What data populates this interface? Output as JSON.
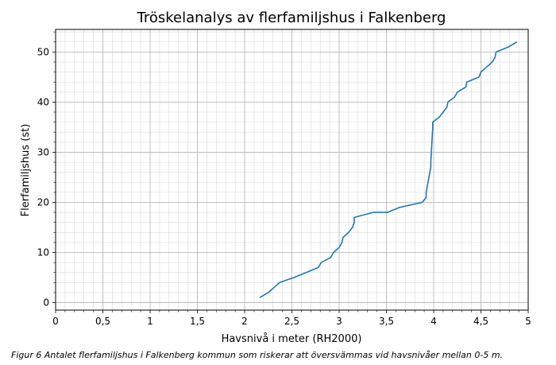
{
  "chart_data": {
    "type": "line",
    "title": "Tröskelanalys av flerfamiljshus i Falkenberg",
    "xlabel": "Havsnivå i meter (RH2000)",
    "ylabel": "Flerfamiljshus (st)",
    "xlim": [
      0,
      5
    ],
    "ylim": [
      -1.5,
      54.5
    ],
    "x_ticks": [
      {
        "value": 0,
        "label": "0"
      },
      {
        "value": 0.5,
        "label": "0,5"
      },
      {
        "value": 1,
        "label": "1"
      },
      {
        "value": 1.5,
        "label": "1,5"
      },
      {
        "value": 2,
        "label": "2"
      },
      {
        "value": 2.5,
        "label": "2,5"
      },
      {
        "value": 3,
        "label": "3"
      },
      {
        "value": 3.5,
        "label": "3,5"
      },
      {
        "value": 4,
        "label": "4"
      },
      {
        "value": 4.5,
        "label": "4,5"
      },
      {
        "value": 5,
        "label": "5"
      }
    ],
    "y_ticks": [
      {
        "value": 0,
        "label": "0"
      },
      {
        "value": 10,
        "label": "10"
      },
      {
        "value": 20,
        "label": "20"
      },
      {
        "value": 30,
        "label": "30"
      },
      {
        "value": 40,
        "label": "40"
      },
      {
        "value": 50,
        "label": "50"
      }
    ],
    "grid": true,
    "minor_grid": true,
    "color": "#1f77b4",
    "series": [
      {
        "x": [
          2.16,
          2.25,
          2.37,
          2.52,
          2.65,
          2.78,
          2.81,
          2.91,
          2.94,
          3.0,
          3.03,
          3.04,
          3.1,
          3.14,
          3.16,
          3.16,
          3.36,
          3.51,
          3.64,
          3.88,
          3.92,
          3.92,
          3.97,
          3.97,
          3.99,
          3.99,
          4.06,
          4.1,
          4.14,
          4.15,
          4.22,
          4.25,
          4.34,
          4.35,
          4.48,
          4.5,
          4.56,
          4.62,
          4.65,
          4.66,
          4.79,
          4.88
        ],
        "y": [
          1,
          2,
          4,
          5,
          6,
          7,
          8,
          9,
          10,
          11,
          12,
          13,
          14,
          15,
          16,
          17,
          18,
          18,
          19,
          20,
          21,
          22,
          27,
          28,
          35,
          36,
          37,
          38,
          39,
          40,
          41,
          42,
          43,
          44,
          45,
          46,
          47,
          48,
          49,
          50,
          51,
          52
        ]
      }
    ]
  },
  "caption": "Figur 6 Antalet flerfamiljshus i Falkenberg kommun som riskerar att översvämmas vid havsnivåer mellan 0-5 m."
}
